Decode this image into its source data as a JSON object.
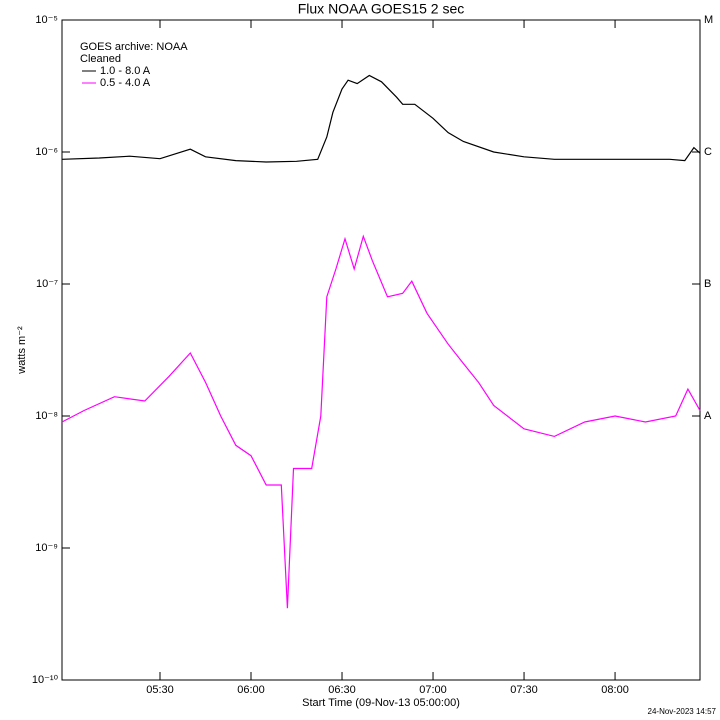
{
  "chart_data": {
    "type": "line",
    "title": "Flux  NOAA GOES15 2 sec",
    "x_label": "Start Time (09-Nov-13 05:00:00)",
    "y_label": "watts m⁻²",
    "legend_title": [
      "GOES archive: NOAA",
      "Cleaned"
    ],
    "footer": "24-Nov-2023 14:57",
    "log_y": true,
    "xlim": [
      -2.3,
      208
    ],
    "xticks": [
      {
        "value": 30,
        "label": "05:30"
      },
      {
        "value": 60,
        "label": "06:00"
      },
      {
        "value": 90,
        "label": "06:30"
      },
      {
        "value": 120,
        "label": "07:00"
      },
      {
        "value": 150,
        "label": "07:30"
      },
      {
        "value": 180,
        "label": "08:00"
      }
    ],
    "ylim": [
      1e-10,
      1e-05
    ],
    "yticks": [
      {
        "value": 1e-10,
        "label": "10⁻¹⁰"
      },
      {
        "value": 1e-09,
        "label": "10⁻⁹"
      },
      {
        "value": 1e-08,
        "label": "10⁻⁸"
      },
      {
        "value": 1e-07,
        "label": "10⁻⁷"
      },
      {
        "value": 1e-06,
        "label": "10⁻⁶"
      },
      {
        "value": 1e-05,
        "label": "10⁻⁵"
      }
    ],
    "class_ticks": [
      {
        "value": 1e-08,
        "label": "A"
      },
      {
        "value": 1e-07,
        "label": "B"
      },
      {
        "value": 1e-06,
        "label": "C"
      },
      {
        "value": 1e-05,
        "label": "M"
      }
    ],
    "series": [
      {
        "name": "1.0 - 8.0 A",
        "color": "#000000",
        "x": [
          -2.3,
          10,
          20,
          30,
          40,
          45,
          55,
          65,
          75,
          82,
          85,
          87,
          90,
          92,
          95,
          99,
          103,
          108,
          110,
          114,
          120,
          125,
          130,
          140,
          150,
          160,
          180,
          198,
          203,
          206,
          208
        ],
        "values": [
          8.8e-07,
          9e-07,
          9.3e-07,
          8.9e-07,
          1.05e-06,
          9.2e-07,
          8.6e-07,
          8.4e-07,
          8.5e-07,
          8.8e-07,
          1.3e-06,
          2e-06,
          3e-06,
          3.5e-06,
          3.3e-06,
          3.8e-06,
          3.4e-06,
          2.6e-06,
          2.3e-06,
          2.3e-06,
          1.8e-06,
          1.4e-06,
          1.2e-06,
          1e-06,
          9.2e-07,
          8.8e-07,
          8.8e-07,
          8.8e-07,
          8.6e-07,
          1.08e-06,
          9.8e-07
        ]
      },
      {
        "name": "0.5 - 4.0 A",
        "color": "#ff00ff",
        "x": [
          -2.3,
          5,
          15,
          25,
          33,
          40,
          45,
          50,
          55,
          60,
          65,
          70,
          72,
          74,
          80,
          83,
          85,
          88,
          91,
          94,
          97,
          100,
          105,
          110,
          113,
          118,
          125,
          130,
          135,
          140,
          150,
          160,
          170,
          180,
          190,
          200,
          204,
          208
        ],
        "values": [
          9e-09,
          1.1e-08,
          1.4e-08,
          1.3e-08,
          2e-08,
          3e-08,
          1.8e-08,
          1e-08,
          6e-09,
          5e-09,
          3e-09,
          3e-09,
          3.5e-10,
          4e-09,
          4e-09,
          1e-08,
          8e-08,
          1.3e-07,
          2.2e-07,
          1.3e-07,
          2.3e-07,
          1.5e-07,
          8e-08,
          8.5e-08,
          1.05e-07,
          6e-08,
          3.5e-08,
          2.5e-08,
          1.8e-08,
          1.2e-08,
          8e-09,
          7e-09,
          9e-09,
          1e-08,
          9e-09,
          1e-08,
          1.6e-08,
          1.1e-08
        ]
      }
    ]
  }
}
